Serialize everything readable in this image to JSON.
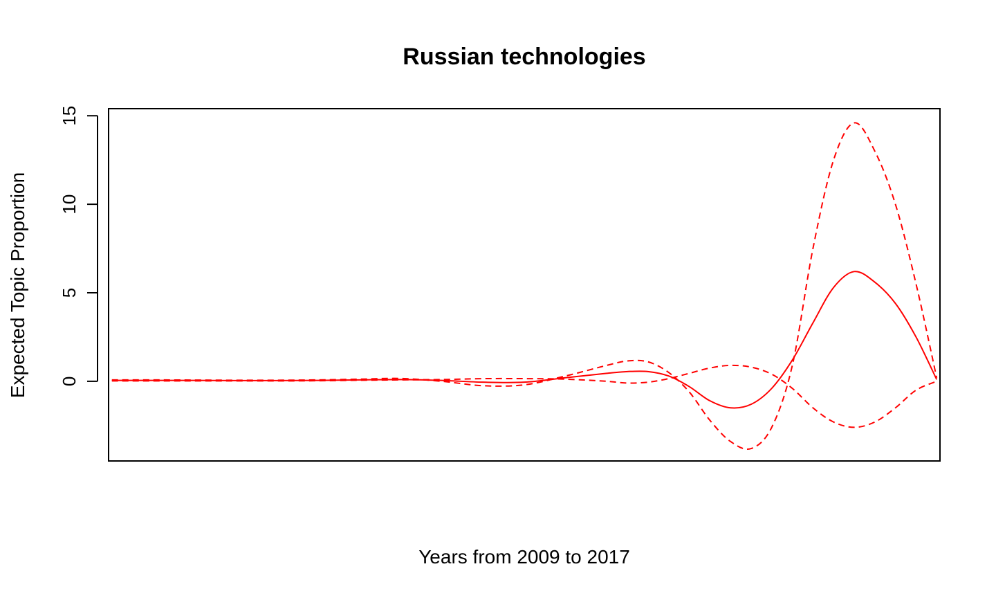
{
  "chart_data": {
    "type": "line",
    "title": "Russian technologies",
    "xlabel": "Years from 2009 to 2017",
    "ylabel": "Expected Topic Proportion",
    "x_ticks_shown": false,
    "y_ticks": [
      0,
      5,
      10,
      15
    ],
    "y_tick_labels": [
      "0",
      "5",
      "10",
      "15"
    ],
    "xlim": [
      0.96,
      11.04
    ],
    "ylim": [
      -4.5,
      15.4
    ],
    "grid": false,
    "legend": "none",
    "colors": {
      "lines": "#ff0000",
      "axes": "#000000"
    },
    "x": [
      1.0,
      1.5,
      2.0,
      2.5,
      3.0,
      3.5,
      4.0,
      4.5,
      5.0,
      5.5,
      6.0,
      6.5,
      7.0,
      7.25,
      7.5,
      7.75,
      8.0,
      8.25,
      8.5,
      8.75,
      9.0,
      9.25,
      9.5,
      9.75,
      10.0,
      10.25,
      10.5,
      10.75,
      11.0
    ],
    "series": [
      {
        "style": "solid",
        "values": [
          0.05,
          0.05,
          0.05,
          0.04,
          0.04,
          0.05,
          0.08,
          0.1,
          0.05,
          -0.05,
          -0.05,
          0.2,
          0.45,
          0.55,
          0.55,
          0.3,
          -0.3,
          -1.1,
          -1.5,
          -1.3,
          -0.4,
          1.2,
          3.3,
          5.3,
          6.2,
          5.6,
          4.4,
          2.5,
          0.1
        ]
      },
      {
        "style": "dashed",
        "values": [
          0.08,
          0.08,
          0.07,
          0.06,
          0.06,
          0.08,
          0.12,
          0.16,
          0.0,
          -0.25,
          -0.2,
          0.3,
          0.9,
          1.15,
          1.1,
          0.5,
          -0.6,
          -2.2,
          -3.4,
          -3.8,
          -2.6,
          0.9,
          7.5,
          12.5,
          14.6,
          13.0,
          10.0,
          5.5,
          0.2
        ]
      },
      {
        "style": "dashed",
        "values": [
          0.02,
          0.02,
          0.02,
          0.02,
          0.02,
          0.03,
          0.06,
          0.08,
          0.1,
          0.15,
          0.15,
          0.12,
          0.0,
          -0.1,
          -0.05,
          0.15,
          0.45,
          0.75,
          0.9,
          0.8,
          0.4,
          -0.4,
          -1.5,
          -2.3,
          -2.6,
          -2.3,
          -1.5,
          -0.5,
          0.0
        ]
      }
    ]
  }
}
